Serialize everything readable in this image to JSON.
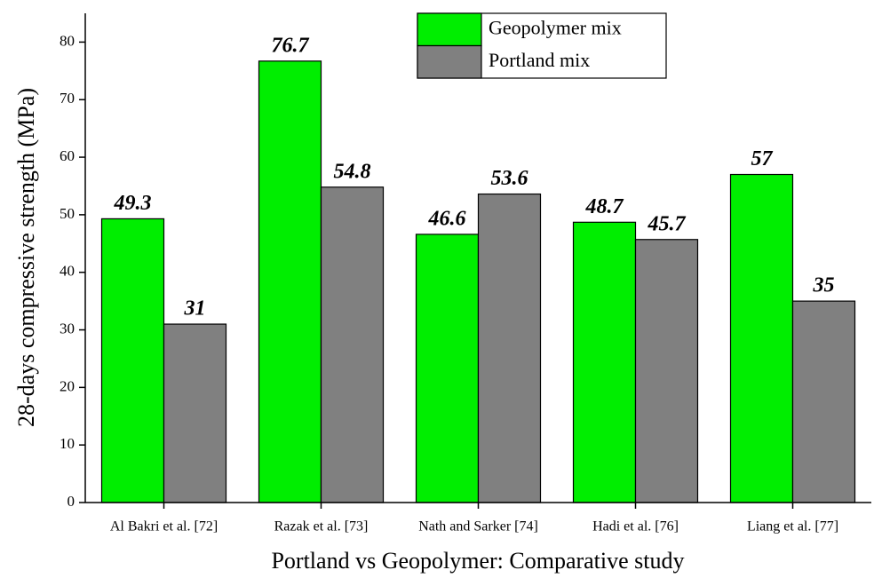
{
  "chart_data": {
    "type": "bar",
    "x_label": "Portland vs Geopolymer: Comparative study",
    "y_label": "28-days compressive strength (MPa)",
    "categories": [
      "Al Bakri et al. [72]",
      "Razak et al. [73]",
      "Nath and Sarker [74]",
      "Hadi et al. [76]",
      "Liang et al. [77]"
    ],
    "series": [
      {
        "name": "Geopolymer mix",
        "color": "#00ee00",
        "values": [
          49.3,
          76.7,
          46.6,
          48.7,
          57
        ]
      },
      {
        "name": "Portland mix",
        "color": "#808080",
        "values": [
          31,
          54.8,
          53.6,
          45.7,
          35
        ]
      }
    ],
    "ylim": [
      0,
      85
    ],
    "yticks": [
      0,
      10,
      20,
      30,
      40,
      50,
      60,
      70,
      80
    ],
    "legend": "top"
  }
}
